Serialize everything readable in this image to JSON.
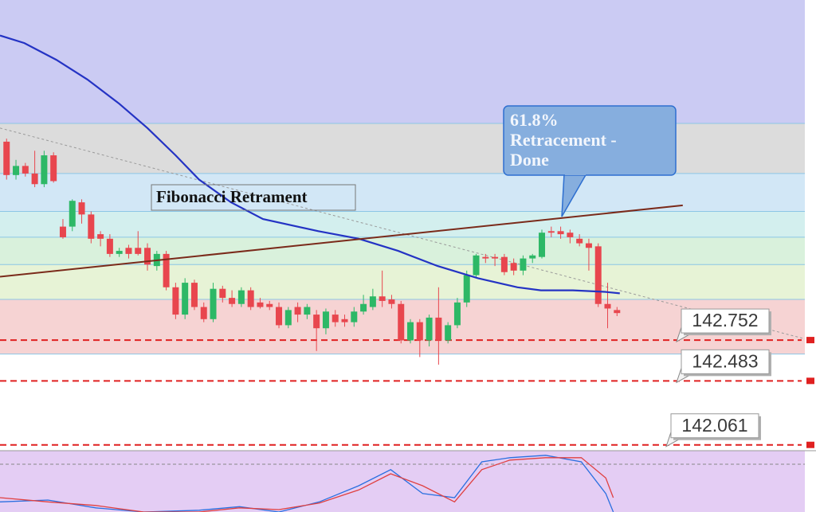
{
  "chart_data": {
    "type": "candlestick",
    "ylim": [
      142.028,
      144.994
    ],
    "xlim": [
      -0.7,
      85
    ],
    "open": [
      144.06,
      143.84,
      143.9,
      143.85,
      143.78,
      143.97,
      143.5,
      143.5,
      143.66,
      143.58,
      143.45,
      143.42,
      143.32,
      143.36,
      143.36,
      143.36,
      143.24,
      143.32,
      143.1,
      142.92,
      143.13,
      142.97,
      142.89,
      143.09,
      143.03,
      142.99,
      143.08,
      143.0,
      142.99,
      142.97,
      142.85,
      142.97,
      142.92,
      142.92,
      142.83,
      142.92,
      142.89,
      142.87,
      142.94,
      142.97,
      143.04,
      143.02,
      142.99,
      142.75,
      142.87,
      142.75,
      142.9,
      142.75,
      142.85,
      143.0,
      143.18,
      143.3,
      143.3,
      143.3,
      143.26,
      143.21,
      143.29,
      143.3,
      143.47,
      143.47,
      143.46,
      143.42,
      143.39,
      143.37,
      142.99,
      142.95
    ],
    "high": [
      144.08,
      143.94,
      143.92,
      144.0,
      144.0,
      143.99,
      143.55,
      143.68,
      143.68,
      143.6,
      143.47,
      143.45,
      143.36,
      143.38,
      143.47,
      143.39,
      143.34,
      143.34,
      143.13,
      143.16,
      143.15,
      143.0,
      143.13,
      143.11,
      143.08,
      143.1,
      143.1,
      143.03,
      143.01,
      143.0,
      142.97,
      143.0,
      142.99,
      142.95,
      142.96,
      142.95,
      142.92,
      142.97,
      143.05,
      143.09,
      143.21,
      143.05,
      143.01,
      142.89,
      142.89,
      142.92,
      143.1,
      142.87,
      143.03,
      143.21,
      143.32,
      143.32,
      143.32,
      143.32,
      143.29,
      143.31,
      143.32,
      143.48,
      143.5,
      143.5,
      143.48,
      143.45,
      143.42,
      143.39,
      143.13,
      142.97
    ],
    "low": [
      143.81,
      143.81,
      143.83,
      143.76,
      143.76,
      143.79,
      143.42,
      143.47,
      143.52,
      143.39,
      143.37,
      143.3,
      143.3,
      143.29,
      143.31,
      143.21,
      143.21,
      143.08,
      142.89,
      142.89,
      142.95,
      142.87,
      142.87,
      143.0,
      142.97,
      142.97,
      142.95,
      142.96,
      142.95,
      142.83,
      142.83,
      142.87,
      142.89,
      142.68,
      142.79,
      142.84,
      142.84,
      142.84,
      142.92,
      142.95,
      142.97,
      142.96,
      142.73,
      142.73,
      142.64,
      142.71,
      142.59,
      142.73,
      142.83,
      142.97,
      143.16,
      143.26,
      143.24,
      143.18,
      143.18,
      143.18,
      143.26,
      143.29,
      143.43,
      143.42,
      143.39,
      143.37,
      143.21,
      142.97,
      142.83,
      142.91
    ],
    "close": [
      143.84,
      143.9,
      143.85,
      143.78,
      143.97,
      143.8,
      143.43,
      143.67,
      143.58,
      143.42,
      143.42,
      143.32,
      143.34,
      143.32,
      143.32,
      143.25,
      143.32,
      143.1,
      142.92,
      143.13,
      142.97,
      142.89,
      143.09,
      143.03,
      142.99,
      143.08,
      142.97,
      142.97,
      142.97,
      142.85,
      142.95,
      142.92,
      142.97,
      142.83,
      142.94,
      142.87,
      142.87,
      142.94,
      142.99,
      143.04,
      143.01,
      142.99,
      142.75,
      142.87,
      142.75,
      142.9,
      142.75,
      142.85,
      143.0,
      143.18,
      143.31,
      143.29,
      143.29,
      143.2,
      143.21,
      143.29,
      143.31,
      143.46,
      143.46,
      143.45,
      143.43,
      143.39,
      143.36,
      142.99,
      142.96,
      142.93
    ],
    "up_color": "#2db866",
    "down_color": "#e8464e",
    "fib_levels": [
      144.18,
      143.85,
      143.6,
      143.43,
      143.25,
      143.02,
      142.66
    ],
    "fib_colors": [
      "#cbcbf3",
      "#dcdcdc",
      "#d2e7f6",
      "#d3efee",
      "#d9f1dc",
      "#e7f3d6",
      "#f6d3d3",
      "#ffffff"
    ],
    "fib_line_color": "#8cc6e6",
    "moving_average": {
      "color": "#2433c4",
      "x": [
        -0.7,
        1.9,
        5.3,
        8.6,
        12,
        15,
        18,
        20.5,
        23.9,
        27.3,
        33.2,
        37.5,
        41.7,
        45.9,
        50.2,
        54.4,
        56.9,
        60.3,
        63.7,
        65.3
      ],
      "values": [
        144.76,
        144.71,
        144.6,
        144.47,
        144.31,
        144.15,
        143.97,
        143.81,
        143.66,
        143.55,
        143.47,
        143.42,
        143.34,
        143.24,
        143.16,
        143.1,
        143.08,
        143.08,
        143.07,
        143.06
      ]
    },
    "trend_line": {
      "color": "#7a2a1a",
      "x": [
        -0.7,
        72
      ],
      "values": [
        143.17,
        143.64
      ]
    },
    "dotted_line": {
      "color": "#9a9a9a",
      "x": [
        -0.7,
        85
      ],
      "values": [
        144.15,
        142.76
      ]
    },
    "price_lines": {
      "color": "#e02020",
      "values": [
        142.752,
        142.483,
        142.061
      ]
    },
    "annotations": {
      "fib_label": "Fibonacci Retrament",
      "callout": [
        "61.8%",
        "Retracement -",
        "Done"
      ]
    },
    "oscillator": {
      "ylim": [
        0,
        100
      ],
      "level": 80,
      "x": [
        -0.7,
        4.4,
        9.5,
        14.6,
        20.5,
        24.8,
        29,
        33.3,
        37.5,
        40.9,
        44.3,
        47.7,
        50.6,
        53.6,
        57.4,
        61.2,
        63.8,
        64.6
      ],
      "series": [
        {
          "color": "#2a6fe0",
          "values": [
            17,
            20,
            7,
            0,
            3,
            9,
            0,
            17,
            44,
            71,
            31,
            24,
            84,
            91,
            95,
            84,
            31,
            0
          ]
        },
        {
          "color": "#e04040",
          "values": [
            24,
            17,
            11,
            0,
            0,
            7,
            4,
            15,
            37,
            64,
            44,
            17,
            71,
            87,
            91,
            91,
            57,
            24
          ]
        }
      ]
    }
  }
}
